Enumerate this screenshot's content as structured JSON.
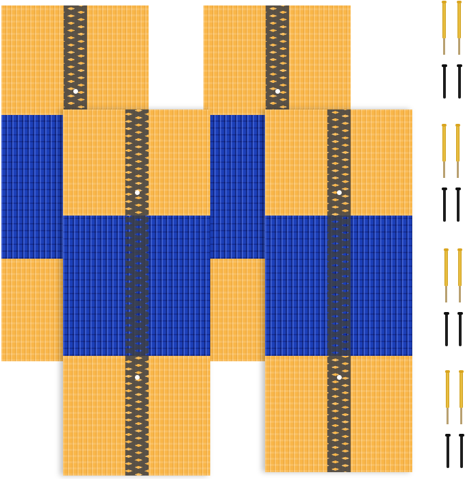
{
  "image": {
    "subject": "brush-rolls",
    "colors": {
      "orange": "#f9b649",
      "blue": "#1c3fb8",
      "dark": "#3e3f44",
      "background": "#ffffff"
    }
  }
}
